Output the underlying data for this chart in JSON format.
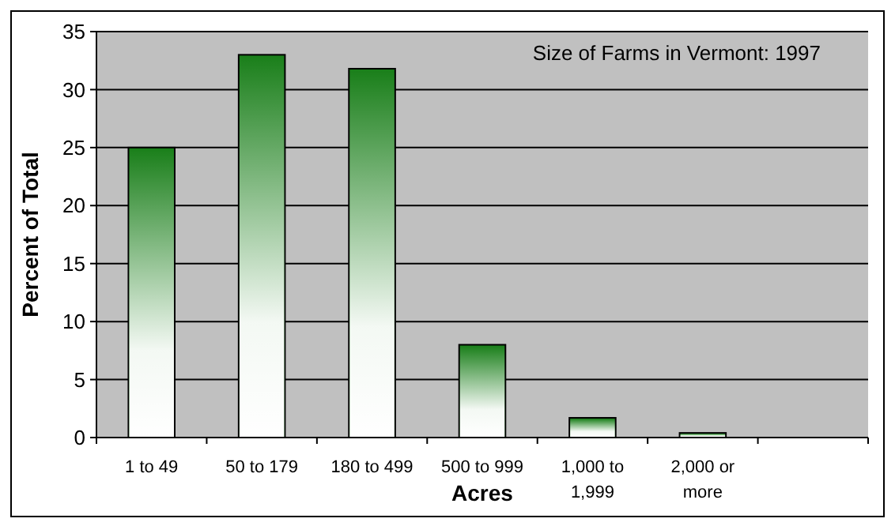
{
  "chart_data": {
    "type": "bar",
    "title": "Size of Farms in Vermont: 1997",
    "xlabel": "Acres",
    "ylabel": "Percent of Total",
    "categories": [
      "1 to 49",
      "50 to 179",
      "180 to 499",
      "500 to 999",
      "1,000 to 1,999",
      "2,000 or more",
      null
    ],
    "values": [
      25,
      33,
      31.8,
      8,
      1.7,
      0.4,
      null
    ],
    "color": "#1a7f1a",
    "ylim": [
      0,
      35
    ],
    "yticks": [
      0,
      5,
      10,
      15,
      20,
      25,
      30,
      35
    ],
    "grid": "y"
  }
}
